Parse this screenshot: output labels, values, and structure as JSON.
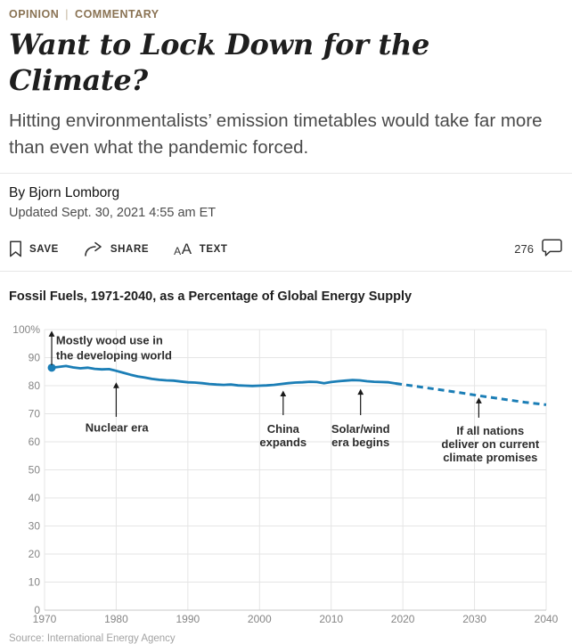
{
  "header": {
    "section": "OPINION",
    "separator": "|",
    "subsection": "COMMENTARY",
    "title": "Want to Lock Down for the Climate?",
    "subtitle": "Hitting environmentalists’ emission timetables would take far more than even what the pandemic forced."
  },
  "byline": {
    "author": "By Bjorn Lomborg",
    "updated": "Updated Sept. 30, 2021 4:55 am ET"
  },
  "toolbar": {
    "save_label": "SAVE",
    "share_label": "SHARE",
    "text_label": "TEXT",
    "comment_count": "276"
  },
  "colors": {
    "kicker_brown": "#8a7354",
    "chart_blue": "#1b7eb6"
  },
  "chart_data": {
    "type": "line",
    "title": "Fossil Fuels, 1971-2040, as a Percentage of Global Energy Supply",
    "source": "Source: International Energy Agency",
    "xlim": [
      1970,
      2040
    ],
    "ylim": [
      0,
      100
    ],
    "x_ticks": [
      1970,
      1980,
      1990,
      2000,
      2010,
      2020,
      2030,
      2040
    ],
    "y_ticks": [
      0,
      10,
      20,
      30,
      40,
      50,
      60,
      70,
      80,
      90,
      100
    ],
    "y_top_label": "100%",
    "grid": true,
    "line_color": "#1b7eb6",
    "series": [
      {
        "name": "Fossil fuel share of global energy supply (historical)",
        "style": "solid",
        "points": [
          [
            1971,
            86.4
          ],
          [
            1972,
            86.7
          ],
          [
            1973,
            87.0
          ],
          [
            1974,
            86.5
          ],
          [
            1975,
            86.2
          ],
          [
            1976,
            86.4
          ],
          [
            1977,
            86.0
          ],
          [
            1978,
            85.8
          ],
          [
            1979,
            85.9
          ],
          [
            1980,
            85.3
          ],
          [
            1981,
            84.6
          ],
          [
            1982,
            83.9
          ],
          [
            1983,
            83.3
          ],
          [
            1984,
            82.9
          ],
          [
            1985,
            82.4
          ],
          [
            1986,
            82.1
          ],
          [
            1987,
            81.9
          ],
          [
            1988,
            81.8
          ],
          [
            1989,
            81.5
          ],
          [
            1990,
            81.2
          ],
          [
            1991,
            81.1
          ],
          [
            1992,
            80.9
          ],
          [
            1993,
            80.6
          ],
          [
            1994,
            80.4
          ],
          [
            1995,
            80.3
          ],
          [
            1996,
            80.4
          ],
          [
            1997,
            80.1
          ],
          [
            1998,
            80.0
          ],
          [
            1999,
            79.9
          ],
          [
            2000,
            80.0
          ],
          [
            2001,
            80.1
          ],
          [
            2002,
            80.3
          ],
          [
            2003,
            80.6
          ],
          [
            2004,
            80.9
          ],
          [
            2005,
            81.1
          ],
          [
            2006,
            81.2
          ],
          [
            2007,
            81.4
          ],
          [
            2008,
            81.3
          ],
          [
            2009,
            80.9
          ],
          [
            2010,
            81.3
          ],
          [
            2011,
            81.6
          ],
          [
            2012,
            81.8
          ],
          [
            2013,
            82.0
          ],
          [
            2014,
            81.9
          ],
          [
            2015,
            81.6
          ],
          [
            2016,
            81.4
          ],
          [
            2017,
            81.3
          ],
          [
            2018,
            81.2
          ],
          [
            2019,
            80.8
          ]
        ]
      },
      {
        "name": "Projection if all nations deliver on current climate promises",
        "style": "dashed",
        "points": [
          [
            2019,
            80.8
          ],
          [
            2022,
            79.7
          ],
          [
            2025,
            78.6
          ],
          [
            2028,
            77.5
          ],
          [
            2031,
            76.3
          ],
          [
            2034,
            75.2
          ],
          [
            2037,
            74.1
          ],
          [
            2040,
            73.2
          ]
        ]
      }
    ],
    "start_marker": {
      "x": 1971,
      "y": 86.4
    },
    "annotations": [
      {
        "text": "Mostly wood use in\nthe developing world",
        "arrow": {
          "x": 1971,
          "from": 87.3,
          "to": 99.4
        },
        "label": {
          "x": 1971.6,
          "y": 94.8
        },
        "align": "left",
        "line_h": 17
      },
      {
        "text": "Nuclear era",
        "arrow": {
          "x": 1980,
          "from": 68.9,
          "to": 81.0
        },
        "label": {
          "x": 1980.1,
          "y": 63.7
        },
        "align": "center",
        "line_h": 15
      },
      {
        "text": "China\nexpands",
        "arrow": {
          "x": 2003.3,
          "from": 69.5,
          "to": 78.1
        },
        "label": {
          "x": 2003.3,
          "y": 63.1
        },
        "align": "center",
        "line_h": 15
      },
      {
        "text": "Solar/wind\nera begins",
        "arrow": {
          "x": 2014.1,
          "from": 69.5,
          "to": 78.7
        },
        "label": {
          "x": 2014.1,
          "y": 63.1
        },
        "align": "center",
        "line_h": 15
      },
      {
        "text": "If all nations\ndeliver on current\nclimate promises",
        "arrow": {
          "x": 2030.6,
          "from": 68.6,
          "to": 75.6
        },
        "label": {
          "x": 2032.2,
          "y": 62.6
        },
        "align": "center",
        "line_h": 15
      }
    ]
  }
}
